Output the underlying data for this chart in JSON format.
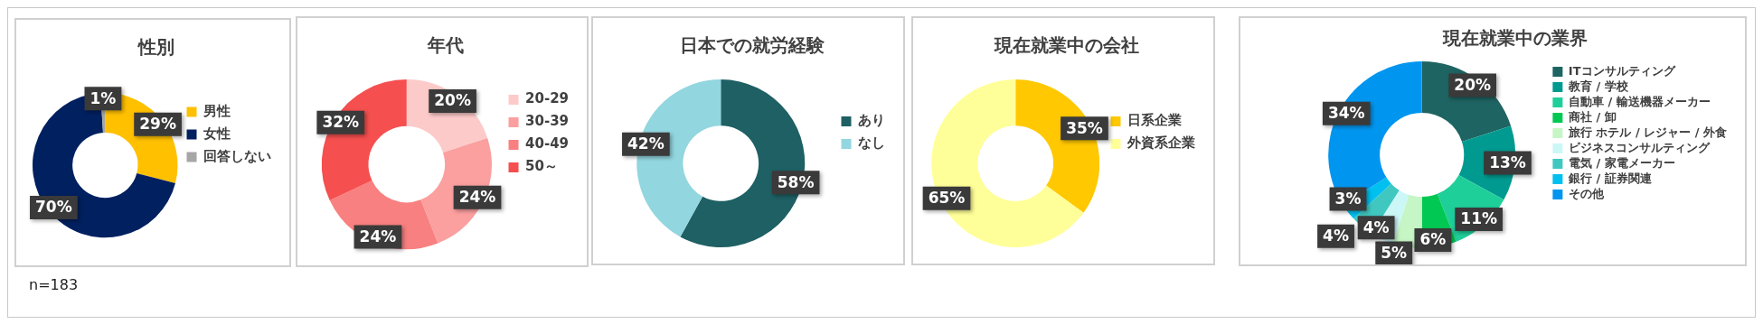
{
  "chart_data": [
    {
      "type": "donut",
      "title": "性別",
      "categories": [
        "男性",
        "女性",
        "回答しない"
      ],
      "values": [
        29,
        70,
        1
      ],
      "colors": [
        "#ffc000",
        "#002060",
        "#a6a6a6"
      ],
      "value_labels": [
        "29%",
        "70%",
        "1%"
      ],
      "legend": "right",
      "annotations": [
        "n=183"
      ]
    },
    {
      "type": "donut",
      "title": "年代",
      "categories": [
        "20-29",
        "30-39",
        "40-49",
        "50～"
      ],
      "values": [
        20,
        24,
        24,
        32
      ],
      "colors": [
        "#fdcaca",
        "#fb9f9f",
        "#f88080",
        "#f54f4f"
      ],
      "value_labels": [
        "20%",
        "24%",
        "24%",
        "32%"
      ],
      "legend": "right"
    },
    {
      "type": "donut",
      "title": "日本での就労経験",
      "categories": [
        "あり",
        "なし"
      ],
      "values": [
        58,
        42
      ],
      "colors": [
        "#1e6064",
        "#92d6df"
      ],
      "value_labels": [
        "58%",
        "42%"
      ],
      "legend": "right"
    },
    {
      "type": "donut",
      "title": "現在就業中の会社",
      "categories": [
        "日系企業",
        "外資系企業"
      ],
      "values": [
        35,
        65
      ],
      "colors": [
        "#ffc800",
        "#ffff99"
      ],
      "value_labels": [
        "35%",
        "65%"
      ],
      "legend": "right"
    },
    {
      "type": "donut",
      "title": "現在就業中の業界",
      "categories": [
        "ITコンサルティング",
        "教育 / 学校",
        "自動車 / 輸送機器メーカー",
        "商社 / 卸",
        "旅行 ホテル / レジャー / 外食",
        "ビジネスコンサルティング",
        "電気 / 家電メーカー",
        "銀行 / 証券関連",
        "その他"
      ],
      "values": [
        20,
        13,
        11,
        6,
        5,
        4,
        4,
        3,
        34
      ],
      "colors": [
        "#1e6462",
        "#009a90",
        "#1fcf9a",
        "#00c853",
        "#c6f5c6",
        "#ccf7f7",
        "#40c8c0",
        "#00c0f0",
        "#0096f0"
      ],
      "value_labels": [
        "20%",
        "13%",
        "11%",
        "6%",
        "5%",
        "4%",
        "4%",
        "3%",
        "34%"
      ],
      "legend": "right"
    }
  ]
}
